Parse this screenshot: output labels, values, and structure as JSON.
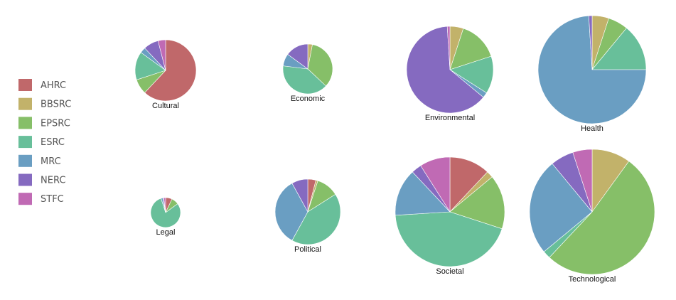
{
  "chart_data": {
    "type": "pie",
    "legend_placement": "left",
    "legend": [
      {
        "name": "AHRC",
        "color": "#c0686a"
      },
      {
        "name": "BBSRC",
        "color": "#c2b26a"
      },
      {
        "name": "EPSRC",
        "color": "#86bf68"
      },
      {
        "name": "ESRC",
        "color": "#68bf9a"
      },
      {
        "name": "MRC",
        "color": "#6a9ec2"
      },
      {
        "name": "NERC",
        "color": "#856ac0"
      },
      {
        "name": "STFC",
        "color": "#c06ab4"
      }
    ],
    "pies": [
      {
        "name": "Cultural",
        "slices": [
          {
            "council": "AHRC",
            "value": 62
          },
          {
            "council": "EPSRC",
            "value": 8
          },
          {
            "council": "ESRC",
            "value": 15
          },
          {
            "council": "MRC",
            "value": 3
          },
          {
            "council": "NERC",
            "value": 8
          },
          {
            "council": "STFC",
            "value": 4
          }
        ]
      },
      {
        "name": "Economic",
        "slices": [
          {
            "council": "BBSRC",
            "value": 3
          },
          {
            "council": "EPSRC",
            "value": 34
          },
          {
            "council": "ESRC",
            "value": 40
          },
          {
            "council": "MRC",
            "value": 8
          },
          {
            "council": "NERC",
            "value": 15
          }
        ]
      },
      {
        "name": "Environmental",
        "slices": [
          {
            "council": "BBSRC",
            "value": 5
          },
          {
            "council": "EPSRC",
            "value": 15
          },
          {
            "council": "ESRC",
            "value": 14
          },
          {
            "council": "MRC",
            "value": 2
          },
          {
            "council": "NERC",
            "value": 63
          },
          {
            "council": "STFC",
            "value": 1
          }
        ]
      },
      {
        "name": "Health",
        "slices": [
          {
            "council": "BBSRC",
            "value": 5
          },
          {
            "council": "EPSRC",
            "value": 6
          },
          {
            "council": "ESRC",
            "value": 14
          },
          {
            "council": "MRC",
            "value": 74
          },
          {
            "council": "NERC",
            "value": 1
          }
        ]
      },
      {
        "name": "Legal",
        "slices": [
          {
            "council": "AHRC",
            "value": 7
          },
          {
            "council": "EPSRC",
            "value": 8
          },
          {
            "council": "ESRC",
            "value": 80
          },
          {
            "council": "MRC",
            "value": 2
          },
          {
            "council": "NERC",
            "value": 1
          },
          {
            "council": "STFC",
            "value": 2
          }
        ]
      },
      {
        "name": "Political",
        "slices": [
          {
            "council": "AHRC",
            "value": 4
          },
          {
            "council": "BBSRC",
            "value": 1
          },
          {
            "council": "EPSRC",
            "value": 11
          },
          {
            "council": "ESRC",
            "value": 42
          },
          {
            "council": "MRC",
            "value": 34
          },
          {
            "council": "NERC",
            "value": 8
          }
        ]
      },
      {
        "name": "Societal",
        "slices": [
          {
            "council": "AHRC",
            "value": 12
          },
          {
            "council": "BBSRC",
            "value": 2
          },
          {
            "council": "EPSRC",
            "value": 16
          },
          {
            "council": "ESRC",
            "value": 44
          },
          {
            "council": "MRC",
            "value": 14
          },
          {
            "council": "NERC",
            "value": 3
          },
          {
            "council": "STFC",
            "value": 9
          }
        ]
      },
      {
        "name": "Technological",
        "slices": [
          {
            "council": "BBSRC",
            "value": 10
          },
          {
            "council": "EPSRC",
            "value": 52
          },
          {
            "council": "ESRC",
            "value": 2
          },
          {
            "council": "MRC",
            "value": 25
          },
          {
            "council": "NERC",
            "value": 6
          },
          {
            "council": "STFC",
            "value": 5
          }
        ]
      }
    ]
  }
}
